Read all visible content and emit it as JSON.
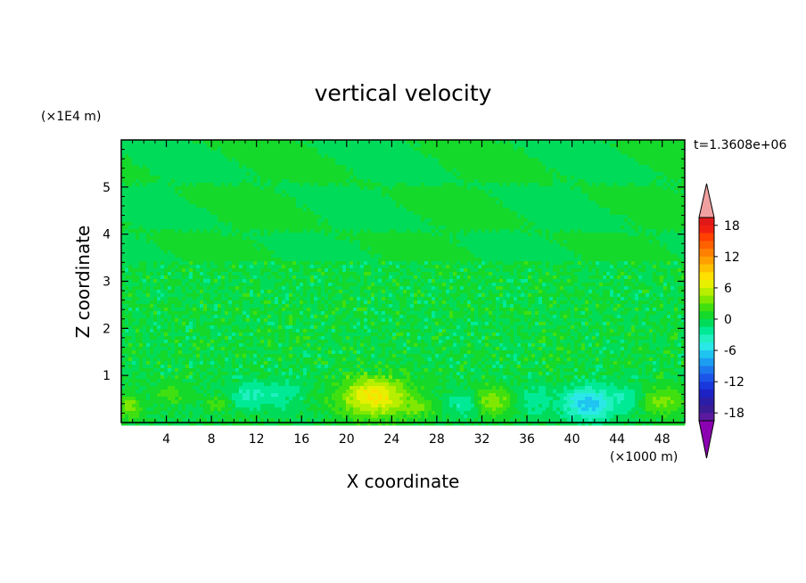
{
  "chart_data": {
    "type": "heatmap",
    "title": "vertical velocity",
    "xlabel": "X coordinate",
    "ylabel": "Z coordinate",
    "x_unit": "(×1000 m)",
    "y_unit": "(×1E4 m)",
    "time_label": "t=1.3608e+06",
    "xlim": [
      0,
      50
    ],
    "ylim": [
      0,
      6
    ],
    "x_ticks": [
      4,
      8,
      12,
      16,
      20,
      24,
      28,
      32,
      36,
      40,
      44,
      48
    ],
    "y_ticks": [
      1,
      2,
      3,
      4,
      5
    ],
    "colorbar": {
      "levels": [
        -21,
        -19.5,
        -18,
        -16.5,
        -15,
        -13.5,
        -12,
        -10.5,
        -9,
        -7.5,
        -6,
        -4.5,
        -3,
        -1.5,
        0,
        1.5,
        3,
        4.5,
        6,
        7.5,
        9,
        10.5,
        12,
        13.5,
        15,
        16.5,
        18,
        19.5,
        21
      ],
      "tick_labels": [
        "18",
        "12",
        "6",
        "0",
        "-6",
        "-12",
        "-18"
      ],
      "tick_values": [
        18,
        12,
        6,
        0,
        -6,
        -12,
        -18
      ],
      "colors": [
        "#8b00b0",
        "#5b1a9e",
        "#3a1c96",
        "#2a1ea8",
        "#1d22c4",
        "#1838dc",
        "#1b55e8",
        "#1c78ee",
        "#1c9df2",
        "#1fc4f0",
        "#2ae8e8",
        "#20f0c0",
        "#00ea96",
        "#00dc5a",
        "#14d82a",
        "#40e010",
        "#80e800",
        "#b8ee00",
        "#e6f000",
        "#ffe000",
        "#ffc000",
        "#ffa000",
        "#ff8000",
        "#ff6000",
        "#ff4000",
        "#f02010",
        "#e01818",
        "#f0a0a0"
      ]
    },
    "dominant_value": 0,
    "blobs": [
      {
        "x": 22.5,
        "z": 0.55,
        "rx": 3.0,
        "rz": 0.42,
        "peak": 8
      },
      {
        "x": 33.0,
        "z": 0.45,
        "rx": 2.0,
        "rz": 0.3,
        "peak": 4
      },
      {
        "x": 48.0,
        "z": 0.45,
        "rx": 2.0,
        "rz": 0.3,
        "peak": 3.5
      },
      {
        "x": 0.8,
        "z": 0.35,
        "rx": 1.0,
        "rz": 0.25,
        "peak": 3.5
      },
      {
        "x": 4.5,
        "z": 0.6,
        "rx": 1.4,
        "rz": 0.2,
        "peak": 2.5
      },
      {
        "x": 8.5,
        "z": 0.4,
        "rx": 1.2,
        "rz": 0.15,
        "peak": 2
      },
      {
        "x": 26.5,
        "z": 0.3,
        "rx": 1.5,
        "rz": 0.2,
        "peak": 2
      },
      {
        "x": 41.5,
        "z": 0.4,
        "rx": 2.2,
        "rz": 0.35,
        "peak": -7
      },
      {
        "x": 30.5,
        "z": 0.4,
        "rx": 1.2,
        "rz": 0.25,
        "peak": -4
      },
      {
        "x": 11.0,
        "z": 0.55,
        "rx": 1.4,
        "rz": 0.25,
        "peak": -3
      },
      {
        "x": 14.0,
        "z": 0.6,
        "rx": 2.2,
        "rz": 0.35,
        "peak": -2.5
      },
      {
        "x": 36.5,
        "z": 0.45,
        "rx": 1.8,
        "rz": 0.3,
        "peak": -2.5
      },
      {
        "x": 45.0,
        "z": 0.5,
        "rx": 1.3,
        "rz": 0.3,
        "peak": -2.5
      }
    ]
  }
}
